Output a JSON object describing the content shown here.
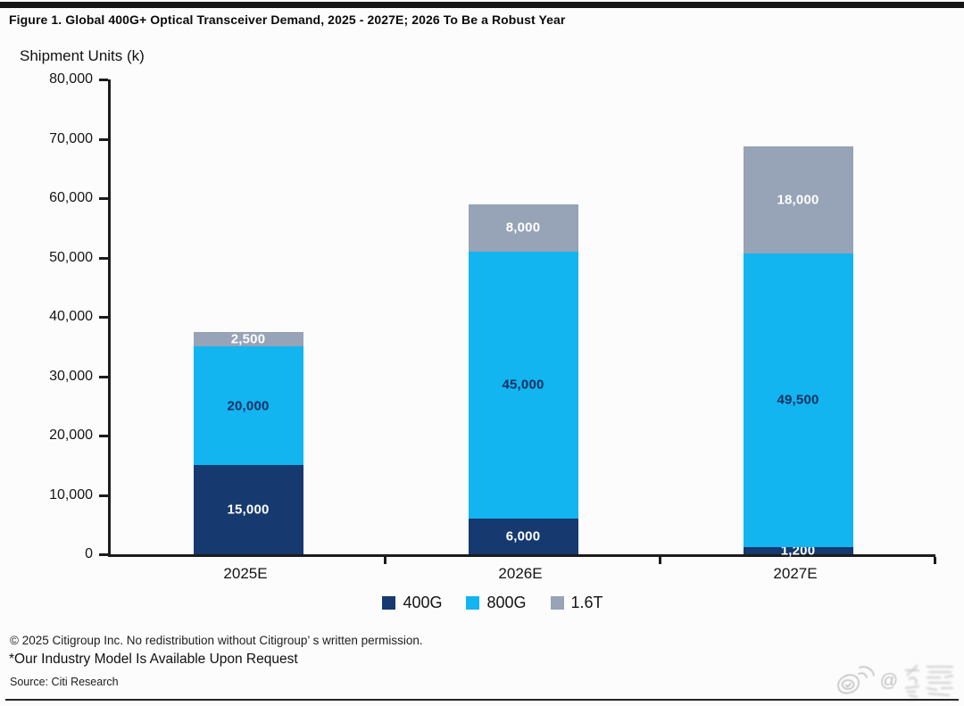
{
  "chart_data": {
    "type": "bar",
    "stacked": true,
    "title": "Figure 1. Global 400G+ Optical Transceiver Demand, 2025 - 2027E; 2026 To Be a Robust Year",
    "ylabel": "Shipment Units (k)",
    "categories": [
      "2025E",
      "2026E",
      "2027E"
    ],
    "series": [
      {
        "name": "400G",
        "color": "#16396F",
        "label_color": "#FFFFFF",
        "values": [
          15000,
          6000,
          1200
        ],
        "labels": [
          "15,000",
          "6,000",
          "1,200"
        ]
      },
      {
        "name": "800G",
        "color": "#12B5EF",
        "label_color": "#0D3064",
        "values": [
          20000,
          45000,
          49500
        ],
        "labels": [
          "20,000",
          "45,000",
          "49,500"
        ]
      },
      {
        "name": "1.6T",
        "color": "#97A3B6",
        "label_color": "#FFFFFF",
        "values": [
          2500,
          8000,
          18000
        ],
        "labels": [
          "2,500",
          "8,000",
          "18,000"
        ]
      }
    ],
    "totals": [
      37500,
      59000,
      68700
    ],
    "ylim": [
      0,
      80000
    ],
    "ytick_step": 10000,
    "ytick_labels": [
      "0",
      "10,000",
      "20,000",
      "30,000",
      "40,000",
      "50,000",
      "60,000",
      "70,000",
      "80,000"
    ],
    "grid": false,
    "legend_position": "bottom"
  },
  "footer": {
    "copyright": "© 2025 Citigroup Inc. No redistribution without Citigroup’ s written permission.",
    "note": "*Our Industry Model Is Available Upon Request",
    "source": "Source: Citi Research"
  },
  "watermark": {
    "at_symbol": "@"
  }
}
